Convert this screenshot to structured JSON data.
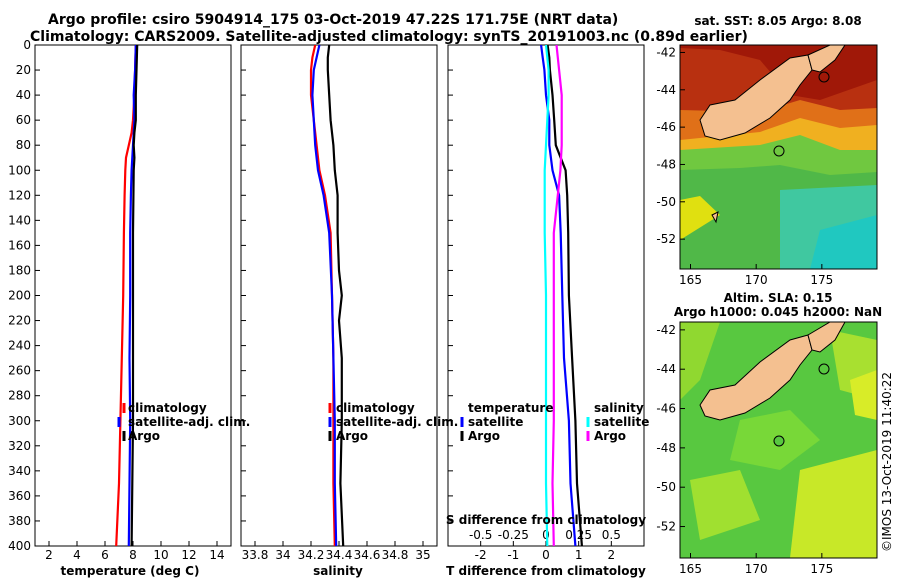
{
  "title": {
    "line1": "Argo profile: csiro 5904914_175 03-Oct-2019 47.22S 171.75E (NRT data)",
    "line2": "Climatology: CARS2009. Satellite-adjusted climatology: synTS_20191003.nc (0.89d earlier)"
  },
  "colors": {
    "climatology": "#ff0000",
    "satellite": "#0000ff",
    "argo": "#000000",
    "sat_s": "#00ffff",
    "argo_s": "#ff00ff"
  },
  "chart_data": [
    {
      "id": "temperature",
      "type": "line",
      "xlabel": "temperature (deg C)",
      "ylim": [
        400,
        0
      ],
      "xlim": [
        1,
        15
      ],
      "xticks": [
        "2",
        "4",
        "6",
        "8",
        "10",
        "12",
        "14"
      ],
      "yticks": [
        "0",
        "20",
        "40",
        "60",
        "80",
        "100",
        "120",
        "140",
        "160",
        "180",
        "200",
        "220",
        "240",
        "260",
        "280",
        "300",
        "320",
        "340",
        "360",
        "380",
        "400"
      ],
      "legend": [
        "climatology",
        "satellite-adj. clim.",
        "Argo"
      ],
      "series": [
        {
          "name": "climatology",
          "depth": [
            0,
            20,
            40,
            60,
            70,
            80,
            90,
            100,
            120,
            150,
            200,
            250,
            300,
            350,
            400
          ],
          "values": [
            8.2,
            8.15,
            8.1,
            8.0,
            7.9,
            7.7,
            7.5,
            7.45,
            7.4,
            7.35,
            7.3,
            7.2,
            7.1,
            7.0,
            6.8
          ]
        },
        {
          "name": "satellite-adj. clim.",
          "depth": [
            0,
            20,
            40,
            60,
            80,
            100,
            120,
            150,
            200,
            250,
            300,
            350,
            400
          ],
          "values": [
            8.2,
            8.15,
            8.05,
            8.1,
            8.0,
            7.9,
            7.85,
            7.8,
            7.8,
            7.75,
            7.8,
            7.75,
            7.7
          ]
        },
        {
          "name": "Argo",
          "depth": [
            0,
            20,
            40,
            60,
            70,
            80,
            90,
            100,
            150,
            200,
            250,
            300,
            350,
            400
          ],
          "values": [
            8.3,
            8.25,
            8.2,
            8.2,
            8.1,
            8.05,
            8.1,
            8.05,
            8.0,
            8.0,
            8.0,
            8.0,
            7.95,
            7.9
          ]
        }
      ]
    },
    {
      "id": "salinity",
      "type": "line",
      "xlabel": "salinity",
      "ylim": [
        400,
        0
      ],
      "xlim": [
        33.7,
        35.1
      ],
      "xticks": [
        "33.8",
        "34",
        "34.2",
        "34.4",
        "34.6",
        "34.8",
        "35"
      ],
      "legend": [
        "climatology",
        "satellite-adj. clim.",
        "Argo"
      ],
      "series": [
        {
          "name": "climatology",
          "depth": [
            0,
            10,
            20,
            40,
            60,
            80,
            100,
            120,
            150,
            200,
            250,
            300,
            350,
            400
          ],
          "values": [
            34.23,
            34.21,
            34.2,
            34.2,
            34.22,
            34.24,
            34.26,
            34.3,
            34.34,
            34.35,
            34.36,
            34.36,
            34.36,
            34.37
          ]
        },
        {
          "name": "satellite-adj. clim.",
          "depth": [
            0,
            10,
            20,
            40,
            60,
            80,
            100,
            120,
            150,
            200,
            250,
            300,
            350,
            400
          ],
          "values": [
            34.26,
            34.24,
            34.22,
            34.21,
            34.22,
            34.23,
            34.25,
            34.29,
            34.33,
            34.35,
            34.36,
            34.37,
            34.37,
            34.38
          ]
        },
        {
          "name": "Argo",
          "depth": [
            0,
            10,
            20,
            40,
            60,
            80,
            100,
            120,
            150,
            180,
            200,
            220,
            250,
            300,
            350,
            400
          ],
          "values": [
            34.33,
            34.32,
            34.32,
            34.33,
            34.34,
            34.36,
            34.37,
            34.39,
            34.39,
            34.4,
            34.42,
            34.4,
            34.42,
            34.42,
            34.41,
            34.43
          ]
        }
      ]
    },
    {
      "id": "difference",
      "type": "line",
      "xlabel": "T difference from climatology",
      "top_label": "S difference from climatology",
      "ylim": [
        400,
        0
      ],
      "xlim": [
        -3,
        3
      ],
      "xticks": [
        "-2",
        "-1",
        "0",
        "1",
        "2"
      ],
      "top_ticks": [
        "-0.5",
        "-0.25",
        "0",
        "0.25",
        "0.5"
      ],
      "legend_T": {
        "title": "temperature",
        "items": [
          "satellite",
          "Argo"
        ]
      },
      "legend_S": {
        "title": "salinity",
        "items": [
          "satellite",
          "Argo"
        ]
      },
      "series": [
        {
          "name": "T satellite",
          "depth": [
            0,
            10,
            20,
            40,
            60,
            80,
            100,
            120,
            150,
            200,
            250,
            300,
            350,
            400
          ],
          "values": [
            -0.15,
            -0.1,
            -0.05,
            0.0,
            0.1,
            0.1,
            0.2,
            0.4,
            0.45,
            0.5,
            0.55,
            0.7,
            0.75,
            0.9
          ]
        },
        {
          "name": "T Argo",
          "depth": [
            0,
            10,
            20,
            40,
            60,
            80,
            100,
            120,
            150,
            200,
            250,
            300,
            350,
            400
          ],
          "values": [
            0.05,
            0.1,
            0.12,
            0.2,
            0.25,
            0.3,
            0.6,
            0.65,
            0.68,
            0.7,
            0.8,
            0.9,
            0.95,
            1.1
          ]
        },
        {
          "name": "S satellite",
          "depth": [
            0,
            10,
            20,
            40,
            60,
            80,
            100,
            120,
            150,
            200,
            250,
            300,
            350,
            400
          ],
          "values": [
            0.0,
            0.01,
            0.02,
            0.02,
            0.01,
            0.0,
            -0.01,
            -0.01,
            -0.01,
            0.0,
            0.0,
            0.0,
            0.0,
            0.01
          ]
        },
        {
          "name": "S Argo",
          "depth": [
            0,
            10,
            20,
            40,
            60,
            80,
            100,
            120,
            150,
            200,
            250,
            300,
            350,
            400
          ],
          "values": [
            0.08,
            0.09,
            0.1,
            0.12,
            0.12,
            0.12,
            0.11,
            0.09,
            0.06,
            0.06,
            0.06,
            0.06,
            0.05,
            0.06
          ]
        }
      ]
    },
    {
      "id": "sst-map",
      "type": "heatmap",
      "title": "sat. SST: 8.05 Argo: 8.08",
      "xticks": [
        "165",
        "170",
        "175"
      ],
      "yticks": [
        "-42",
        "-44",
        "-46",
        "-48",
        "-50",
        "-52"
      ],
      "xlim": [
        164.2,
        179.2
      ],
      "ylim": [
        -53.6,
        -41.6
      ]
    },
    {
      "id": "sla-map",
      "type": "heatmap",
      "title_line1": "Altim. SLA: 0.15",
      "title_line2": "Argo h1000: 0.045 h2000: NaN",
      "xticks": [
        "165",
        "170",
        "175"
      ],
      "yticks": [
        "-42",
        "-44",
        "-46",
        "-48",
        "-50",
        "-52"
      ],
      "xlim": [
        164.2,
        179.2
      ],
      "ylim": [
        -53.6,
        -41.6
      ]
    }
  ],
  "credit": "©IMOS 13-Oct-2019 11:40:22"
}
